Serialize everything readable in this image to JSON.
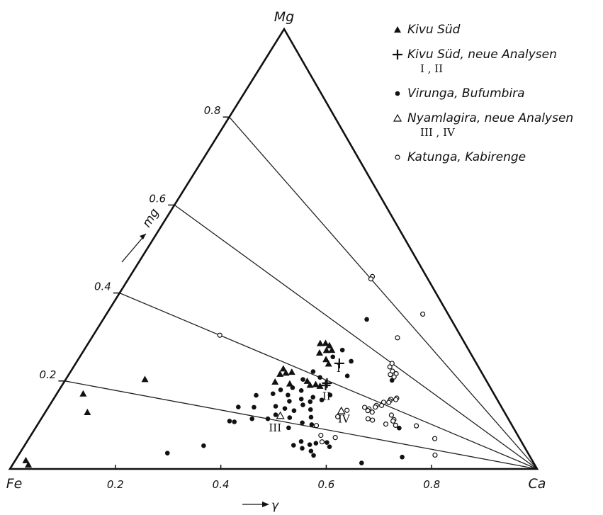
{
  "chart_data": {
    "type": "scatter",
    "vertices": {
      "top": "Mg",
      "left": "Fe",
      "right": "Ca"
    },
    "mg_axis": {
      "label": "mg",
      "ticks": [
        {
          "value": 0.2,
          "label": "0.2"
        },
        {
          "value": 0.4,
          "label": "0.4"
        },
        {
          "value": 0.6,
          "label": "0.6"
        },
        {
          "value": 0.8,
          "label": "0.8"
        }
      ]
    },
    "gamma_axis": {
      "label": "γ",
      "ticks": [
        {
          "value": 0.2,
          "label": "0.2"
        },
        {
          "value": 0.4,
          "label": "0.4"
        },
        {
          "value": 0.6,
          "label": "0.6"
        },
        {
          "value": 0.8,
          "label": "0.8"
        }
      ]
    },
    "iso_mg_lines": [
      0.2,
      0.4,
      0.6,
      0.8
    ],
    "legend": [
      {
        "marker": "triangle-filled",
        "lines": [
          "Kivu Süd"
        ]
      },
      {
        "marker": "plus",
        "lines": [
          "Kivu Süd, neue Analysen",
          "I ,  II"
        ]
      },
      {
        "marker": "dot-filled",
        "lines": [
          "Virunga, Bufumbira"
        ]
      },
      {
        "marker": "triangle-open",
        "lines": [
          "Nyamlagira, neue Analysen",
          "III ,   IV"
        ]
      },
      {
        "marker": "circle-open",
        "lines": [
          "Katunga, Kabirenge"
        ]
      }
    ],
    "series": [
      {
        "name": "Kivu Süd",
        "marker": "triangle-filled",
        "points": [
          [
            0.45,
            0.52
          ],
          [
            0.46,
            0.52
          ],
          [
            0.44,
            0.51
          ],
          [
            0.46,
            0.5
          ],
          [
            0.47,
            0.51
          ],
          [
            0.45,
            0.48
          ],
          [
            0.47,
            0.47
          ],
          [
            0.48,
            0.46
          ],
          [
            0.4,
            0.38
          ],
          [
            0.41,
            0.37
          ],
          [
            0.42,
            0.38
          ],
          [
            0.46,
            0.37
          ],
          [
            0.48,
            0.37
          ],
          [
            0.47,
            0.36
          ],
          [
            0.49,
            0.37
          ],
          [
            0.4,
            0.36
          ],
          [
            0.4,
            0.33
          ],
          [
            0.43,
            0.34
          ],
          [
            0.08,
            0.14
          ],
          [
            0.05,
            0.18
          ],
          [
            0.15,
            0.24
          ],
          [
            0.02,
            0.02
          ],
          [
            0.03,
            0.01
          ]
        ]
      },
      {
        "name": "Kivu Süd, neue Analysen",
        "marker": "plus",
        "points": [
          [
            0.5,
            0.48
          ],
          [
            0.5,
            0.39
          ],
          [
            0.5,
            0.38
          ]
        ],
        "annotations": [
          {
            "label": "I",
            "at": [
              0.5,
              0.48
            ]
          },
          {
            "label": "II",
            "at": [
              0.51,
              0.36
            ]
          }
        ]
      },
      {
        "name": "Virunga, Bufumbira",
        "marker": "dot-filled",
        "points": [
          [
            0.5,
            0.68
          ],
          [
            0.62,
            0.53
          ],
          [
            0.49,
            0.53
          ],
          [
            0.52,
            0.51
          ],
          [
            0.48,
            0.49
          ],
          [
            0.53,
            0.45
          ],
          [
            0.46,
            0.41
          ],
          [
            0.48,
            0.4
          ],
          [
            0.45,
            0.37
          ],
          [
            0.52,
            0.35
          ],
          [
            0.44,
            0.33
          ],
          [
            0.46,
            0.33
          ],
          [
            0.49,
            0.32
          ],
          [
            0.51,
            0.32
          ],
          [
            0.42,
            0.31
          ],
          [
            0.44,
            0.3
          ],
          [
            0.47,
            0.3
          ],
          [
            0.49,
            0.3
          ],
          [
            0.41,
            0.29
          ],
          [
            0.45,
            0.28
          ],
          [
            0.48,
            0.28
          ],
          [
            0.5,
            0.27
          ],
          [
            0.38,
            0.27
          ],
          [
            0.43,
            0.25
          ],
          [
            0.45,
            0.25
          ],
          [
            0.47,
            0.25
          ],
          [
            0.51,
            0.24
          ],
          [
            0.39,
            0.23
          ],
          [
            0.44,
            0.22
          ],
          [
            0.47,
            0.22
          ],
          [
            0.5,
            0.21
          ],
          [
            0.52,
            0.21
          ],
          [
            0.36,
            0.22
          ],
          [
            0.4,
            0.19
          ],
          [
            0.43,
            0.2
          ],
          [
            0.48,
            0.18
          ],
          [
            0.36,
            0.17
          ],
          [
            0.37,
            0.17
          ],
          [
            0.52,
            0.13
          ],
          [
            0.55,
            0.13
          ],
          [
            0.54,
            0.12
          ],
          [
            0.57,
            0.14
          ],
          [
            0.58,
            0.12
          ],
          [
            0.51,
            0.11
          ],
          [
            0.53,
            0.1
          ],
          [
            0.55,
            0.09
          ],
          [
            0.56,
            0.07
          ],
          [
            0.69,
            0.3
          ],
          [
            0.73,
            0.1
          ],
          [
            0.34,
            0.08
          ],
          [
            0.28,
            0.05
          ],
          [
            0.66,
            0.04
          ]
        ]
      },
      {
        "name": "Nyamlagira, neue Analysen",
        "marker": "triangle-open",
        "points": [
          [
            0.56,
            0.3
          ],
          [
            0.45,
            0.22
          ]
        ],
        "annotations": [
          {
            "label": "IV",
            "at": [
              0.57,
              0.29
            ]
          },
          {
            "label": "III",
            "at": [
              0.45,
              0.19
            ]
          }
        ]
      },
      {
        "name": "Katunga, Kabirenge",
        "marker": "circle-open",
        "points": [
          [
            0.6,
            0.88
          ],
          [
            0.46,
            0.81
          ],
          [
            0.46,
            0.8
          ],
          [
            0.58,
            0.71
          ],
          [
            0.24,
            0.4
          ],
          [
            0.6,
            0.6
          ],
          [
            0.6,
            0.58
          ],
          [
            0.61,
            0.57
          ],
          [
            0.62,
            0.57
          ],
          [
            0.61,
            0.55
          ],
          [
            0.62,
            0.55
          ],
          [
            0.65,
            0.46
          ],
          [
            0.65,
            0.45
          ],
          [
            0.64,
            0.44
          ],
          [
            0.64,
            0.43
          ],
          [
            0.64,
            0.42
          ],
          [
            0.63,
            0.41
          ],
          [
            0.63,
            0.39
          ],
          [
            0.62,
            0.38
          ],
          [
            0.62,
            0.37
          ],
          [
            0.61,
            0.35
          ],
          [
            0.61,
            0.34
          ],
          [
            0.62,
            0.34
          ],
          [
            0.66,
            0.36
          ],
          [
            0.67,
            0.34
          ],
          [
            0.66,
            0.3
          ],
          [
            0.68,
            0.31
          ],
          [
            0.62,
            0.3
          ],
          [
            0.63,
            0.3
          ],
          [
            0.57,
            0.31
          ],
          [
            0.56,
            0.27
          ],
          [
            0.6,
            0.35
          ],
          [
            0.67,
            0.33
          ],
          [
            0.72,
            0.35
          ],
          [
            0.77,
            0.3
          ],
          [
            0.79,
            0.15
          ],
          [
            0.53,
            0.21
          ],
          [
            0.55,
            0.17
          ],
          [
            0.58,
            0.17
          ],
          [
            0.56,
            0.14
          ]
        ]
      }
    ]
  }
}
